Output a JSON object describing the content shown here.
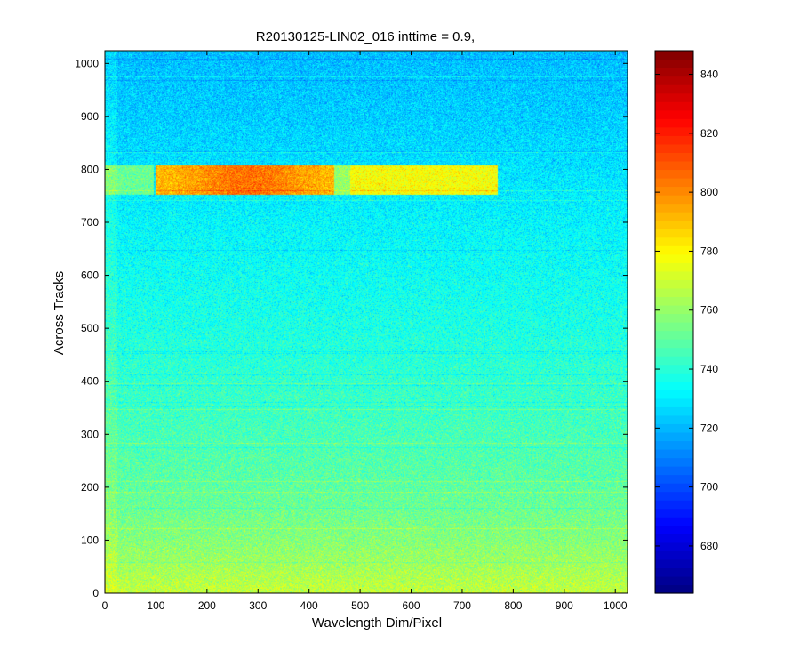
{
  "chart_data": {
    "type": "heatmap",
    "title": "R20130125-LIN02_016 inttime = 0.9,",
    "xlabel": "Wavelength Dim/Pixel",
    "ylabel": "Across Tracks",
    "xlim": [
      0,
      1024
    ],
    "ylim": [
      0,
      1024
    ],
    "x_ticks": [
      0,
      100,
      200,
      300,
      400,
      500,
      600,
      700,
      800,
      900,
      1000
    ],
    "y_ticks": [
      0,
      100,
      200,
      300,
      400,
      500,
      600,
      700,
      800,
      900,
      1000
    ],
    "colormap": "jet",
    "clim": [
      664,
      848
    ],
    "colorbar_ticks": [
      680,
      700,
      720,
      740,
      760,
      780,
      800,
      820,
      840
    ],
    "background_profile": [
      {
        "y": 0,
        "value": 768
      },
      {
        "y": 100,
        "value": 757
      },
      {
        "y": 200,
        "value": 750
      },
      {
        "y": 300,
        "value": 746
      },
      {
        "y": 400,
        "value": 742
      },
      {
        "y": 500,
        "value": 738
      },
      {
        "y": 600,
        "value": 735
      },
      {
        "y": 700,
        "value": 732
      },
      {
        "y": 800,
        "value": 728
      },
      {
        "y": 900,
        "value": 724
      },
      {
        "y": 1024,
        "value": 721
      }
    ],
    "bright_band": {
      "y_range": [
        752,
        808
      ],
      "segments": [
        {
          "x_range": [
            0,
            95
          ],
          "value": 752
        },
        {
          "x_range": [
            100,
            450
          ],
          "value": 790,
          "peak_x": 280,
          "peak_value": 805
        },
        {
          "x_range": [
            450,
            480
          ],
          "value": 760
        },
        {
          "x_range": [
            480,
            770
          ],
          "value": 778
        }
      ]
    },
    "grid": false
  }
}
